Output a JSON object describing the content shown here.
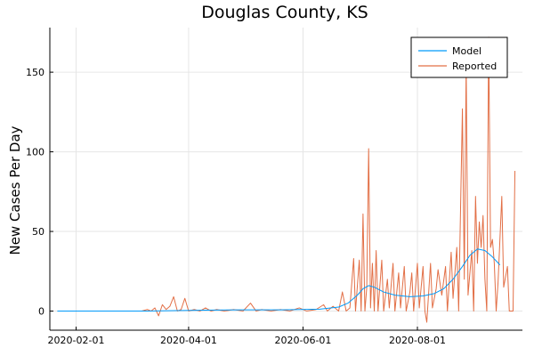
{
  "chart_data": {
    "type": "line",
    "title": "Douglas County, KS",
    "xlabel": "",
    "ylabel": "New Cases Per Day",
    "x_axis": "date",
    "xlim": [
      "2020-01-18",
      "2020-09-26"
    ],
    "ylim": [
      -12,
      178
    ],
    "x_ticks": [
      "2020-02-01",
      "2020-04-01",
      "2020-06-01",
      "2020-08-01"
    ],
    "y_ticks": [
      0,
      50,
      100,
      150
    ],
    "grid": true,
    "legend": "top-right",
    "series": [
      {
        "name": "Model",
        "color": "#009AFA",
        "points": [
          [
            "2020-01-22",
            0
          ],
          [
            "2020-02-15",
            0
          ],
          [
            "2020-03-10",
            0
          ],
          [
            "2020-03-25",
            0.3
          ],
          [
            "2020-04-10",
            0.6
          ],
          [
            "2020-04-30",
            0.8
          ],
          [
            "2020-05-20",
            0.8
          ],
          [
            "2020-06-10",
            1.2
          ],
          [
            "2020-06-20",
            2.5
          ],
          [
            "2020-06-25",
            5
          ],
          [
            "2020-06-30",
            10
          ],
          [
            "2020-07-03",
            14
          ],
          [
            "2020-07-06",
            16
          ],
          [
            "2020-07-09",
            15
          ],
          [
            "2020-07-14",
            12
          ],
          [
            "2020-07-20",
            10
          ],
          [
            "2020-07-28",
            9
          ],
          [
            "2020-08-04",
            9.5
          ],
          [
            "2020-08-10",
            11
          ],
          [
            "2020-08-15",
            14
          ],
          [
            "2020-08-20",
            20
          ],
          [
            "2020-08-25",
            28
          ],
          [
            "2020-08-29",
            35
          ],
          [
            "2020-09-02",
            39
          ],
          [
            "2020-09-06",
            38
          ],
          [
            "2020-09-10",
            34
          ],
          [
            "2020-09-14",
            29
          ]
        ]
      },
      {
        "name": "Reported",
        "color": "#E26F46",
        "points": [
          [
            "2020-01-22",
            0
          ],
          [
            "2020-03-07",
            0
          ],
          [
            "2020-03-10",
            1
          ],
          [
            "2020-03-12",
            0
          ],
          [
            "2020-03-14",
            2
          ],
          [
            "2020-03-16",
            -3
          ],
          [
            "2020-03-18",
            4
          ],
          [
            "2020-03-20",
            1
          ],
          [
            "2020-03-22",
            3
          ],
          [
            "2020-03-24",
            9
          ],
          [
            "2020-03-26",
            0
          ],
          [
            "2020-03-28",
            1
          ],
          [
            "2020-03-30",
            8
          ],
          [
            "2020-04-01",
            0
          ],
          [
            "2020-04-04",
            1
          ],
          [
            "2020-04-07",
            0
          ],
          [
            "2020-04-10",
            2
          ],
          [
            "2020-04-13",
            0
          ],
          [
            "2020-04-16",
            1
          ],
          [
            "2020-04-20",
            0
          ],
          [
            "2020-04-25",
            1
          ],
          [
            "2020-04-30",
            0
          ],
          [
            "2020-05-04",
            5
          ],
          [
            "2020-05-07",
            0
          ],
          [
            "2020-05-10",
            1
          ],
          [
            "2020-05-15",
            0
          ],
          [
            "2020-05-20",
            1
          ],
          [
            "2020-05-25",
            0
          ],
          [
            "2020-05-30",
            2
          ],
          [
            "2020-06-03",
            0
          ],
          [
            "2020-06-08",
            1
          ],
          [
            "2020-06-12",
            4
          ],
          [
            "2020-06-14",
            0
          ],
          [
            "2020-06-17",
            3
          ],
          [
            "2020-06-20",
            0
          ],
          [
            "2020-06-22",
            12
          ],
          [
            "2020-06-24",
            0
          ],
          [
            "2020-06-26",
            2
          ],
          [
            "2020-06-28",
            33
          ],
          [
            "2020-06-29",
            0
          ],
          [
            "2020-07-01",
            32
          ],
          [
            "2020-07-02",
            0
          ],
          [
            "2020-07-03",
            61
          ],
          [
            "2020-07-04",
            0
          ],
          [
            "2020-07-05",
            15
          ],
          [
            "2020-07-06",
            102
          ],
          [
            "2020-07-07",
            2
          ],
          [
            "2020-07-08",
            30
          ],
          [
            "2020-07-09",
            0
          ],
          [
            "2020-07-10",
            38
          ],
          [
            "2020-07-11",
            0
          ],
          [
            "2020-07-13",
            32
          ],
          [
            "2020-07-14",
            0
          ],
          [
            "2020-07-16",
            20
          ],
          [
            "2020-07-17",
            2
          ],
          [
            "2020-07-19",
            30
          ],
          [
            "2020-07-20",
            0
          ],
          [
            "2020-07-22",
            24
          ],
          [
            "2020-07-23",
            2
          ],
          [
            "2020-07-25",
            28
          ],
          [
            "2020-07-26",
            0
          ],
          [
            "2020-07-28",
            12
          ],
          [
            "2020-07-29",
            24
          ],
          [
            "2020-07-30",
            0
          ],
          [
            "2020-08-01",
            30
          ],
          [
            "2020-08-02",
            2
          ],
          [
            "2020-08-04",
            28
          ],
          [
            "2020-08-05",
            0
          ],
          [
            "2020-08-06",
            -7
          ],
          [
            "2020-08-08",
            30
          ],
          [
            "2020-08-09",
            2
          ],
          [
            "2020-08-11",
            14
          ],
          [
            "2020-08-12",
            26
          ],
          [
            "2020-08-14",
            10
          ],
          [
            "2020-08-16",
            28
          ],
          [
            "2020-08-17",
            0
          ],
          [
            "2020-08-19",
            37
          ],
          [
            "2020-08-20",
            8
          ],
          [
            "2020-08-22",
            40
          ],
          [
            "2020-08-23",
            0
          ],
          [
            "2020-08-25",
            127
          ],
          [
            "2020-08-26",
            20
          ],
          [
            "2020-08-27",
            155
          ],
          [
            "2020-08-28",
            10
          ],
          [
            "2020-08-30",
            38
          ],
          [
            "2020-08-31",
            0
          ],
          [
            "2020-09-01",
            72
          ],
          [
            "2020-09-02",
            30
          ],
          [
            "2020-09-03",
            56
          ],
          [
            "2020-09-04",
            40
          ],
          [
            "2020-09-05",
            60
          ],
          [
            "2020-09-06",
            20
          ],
          [
            "2020-09-07",
            0
          ],
          [
            "2020-09-08",
            172
          ],
          [
            "2020-09-09",
            40
          ],
          [
            "2020-09-10",
            45
          ],
          [
            "2020-09-11",
            30
          ],
          [
            "2020-09-12",
            0
          ],
          [
            "2020-09-13",
            18
          ],
          [
            "2020-09-15",
            72
          ],
          [
            "2020-09-16",
            15
          ],
          [
            "2020-09-18",
            28
          ],
          [
            "2020-09-19",
            0
          ],
          [
            "2020-09-21",
            0
          ],
          [
            "2020-09-22",
            88
          ]
        ]
      }
    ]
  }
}
